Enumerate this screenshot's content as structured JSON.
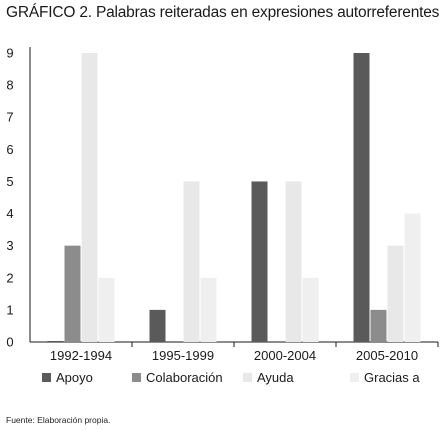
{
  "title": "GRÁFICO 2. Palabras reiteradas en expresiones autorreferentes",
  "source": "Fuente: Elaboración propia.",
  "chart_data": {
    "type": "bar",
    "title": "GRÁFICO 2. Palabras reiteradas en expresiones autorreferentes",
    "xlabel": "",
    "ylabel": "",
    "categories": [
      "1992-1994",
      "1995-1999",
      "2000-2004",
      "2005-2010"
    ],
    "series": [
      {
        "name": "Apoyo",
        "color": "#5a5a5a",
        "values": [
          0,
          1,
          5,
          9
        ]
      },
      {
        "name": "Colaboración",
        "color": "#8c8c8c",
        "values": [
          3,
          0,
          0,
          1
        ]
      },
      {
        "name": "Ayuda",
        "color": "#e8e8e8",
        "values": [
          9,
          5,
          5,
          3
        ]
      },
      {
        "name": "Gracias a",
        "color": "#efefef",
        "values": [
          2,
          2,
          2,
          4
        ]
      }
    ],
    "ylim": [
      0,
      9
    ],
    "yticks": [
      0,
      1,
      2,
      3,
      4,
      5,
      6,
      7,
      8,
      9
    ],
    "grid": false,
    "legend": "bottom"
  }
}
